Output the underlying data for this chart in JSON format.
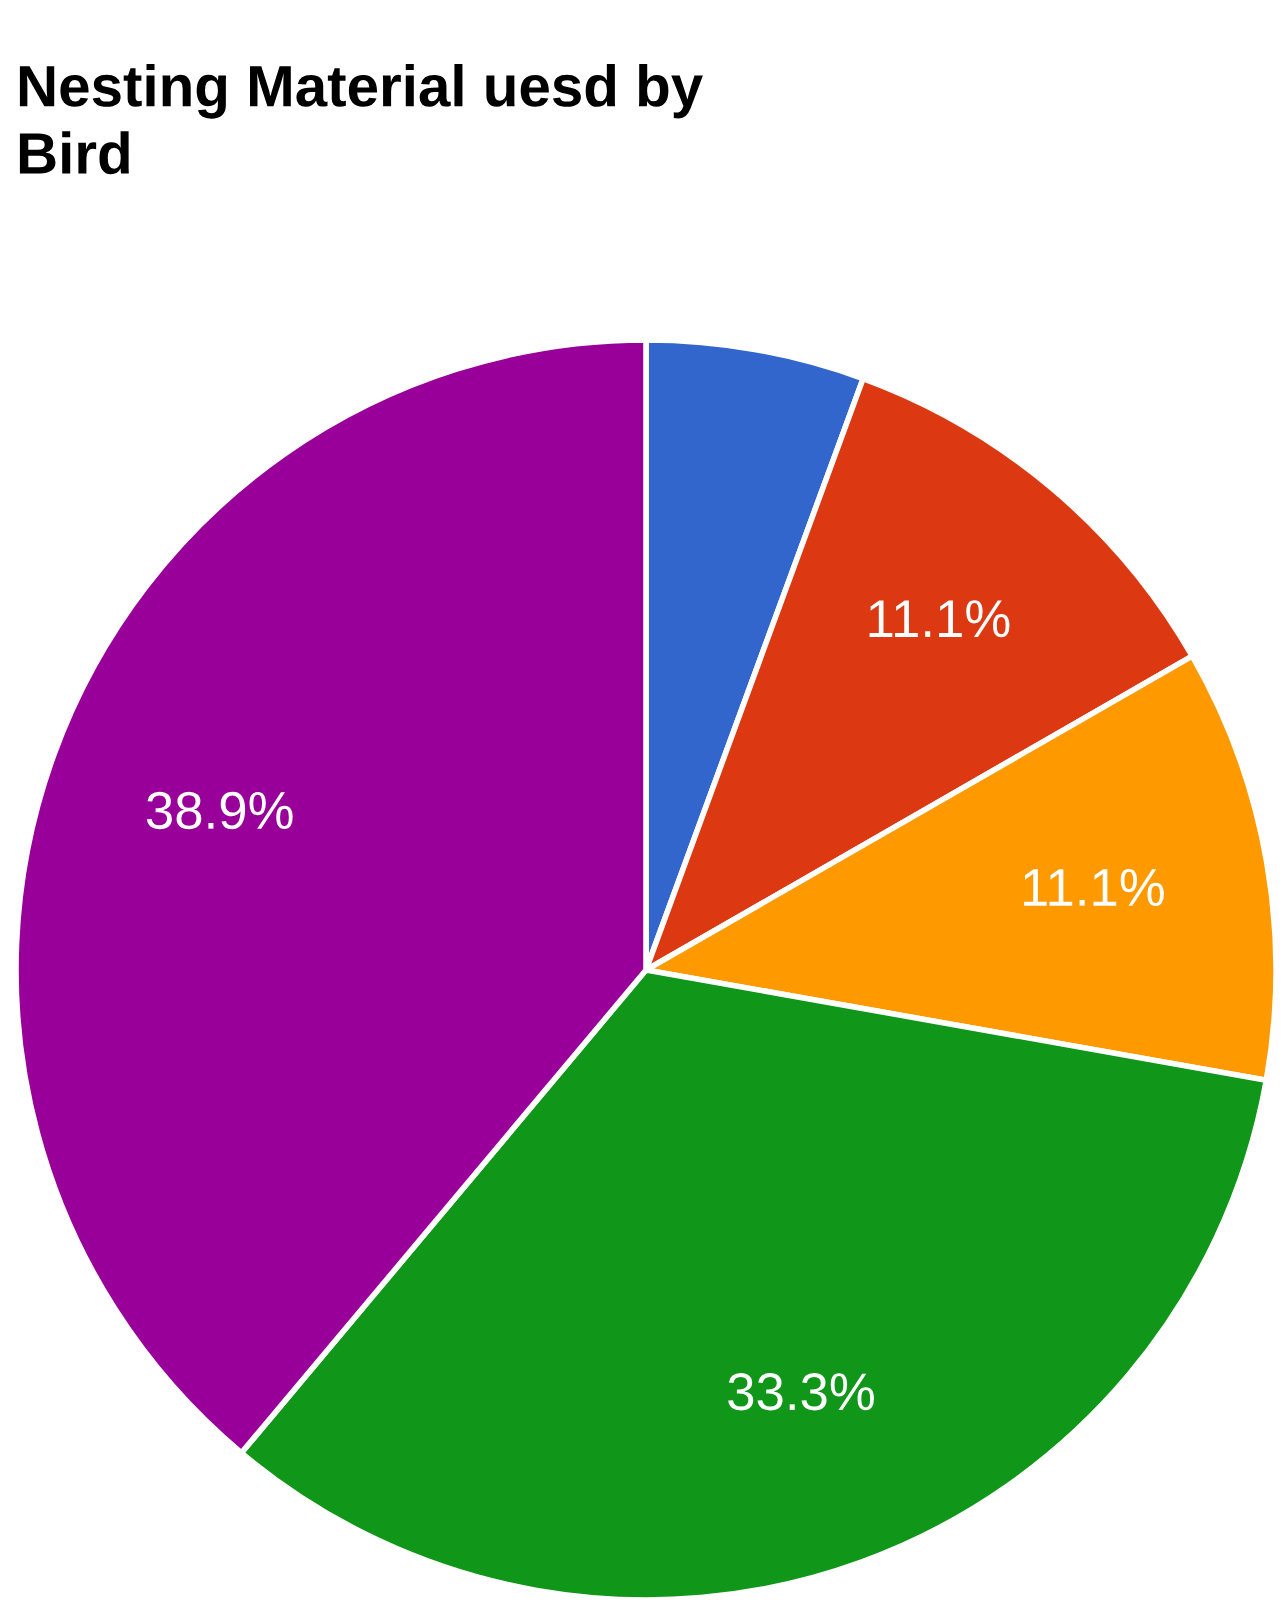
{
  "chart_data": {
    "type": "pie",
    "title": "Nesting Material uesd by\nBird",
    "categories": [
      null,
      null,
      null,
      null,
      null
    ],
    "values": [
      5.6,
      11.1,
      11.1,
      33.3,
      38.9
    ],
    "colors": [
      "#3366cc",
      "#dc3912",
      "#ff9900",
      "#109618",
      "#990099"
    ],
    "value_labels": [
      null,
      "11.1%",
      "11.1%",
      "33.3%",
      "38.9%"
    ],
    "legend": false
  }
}
